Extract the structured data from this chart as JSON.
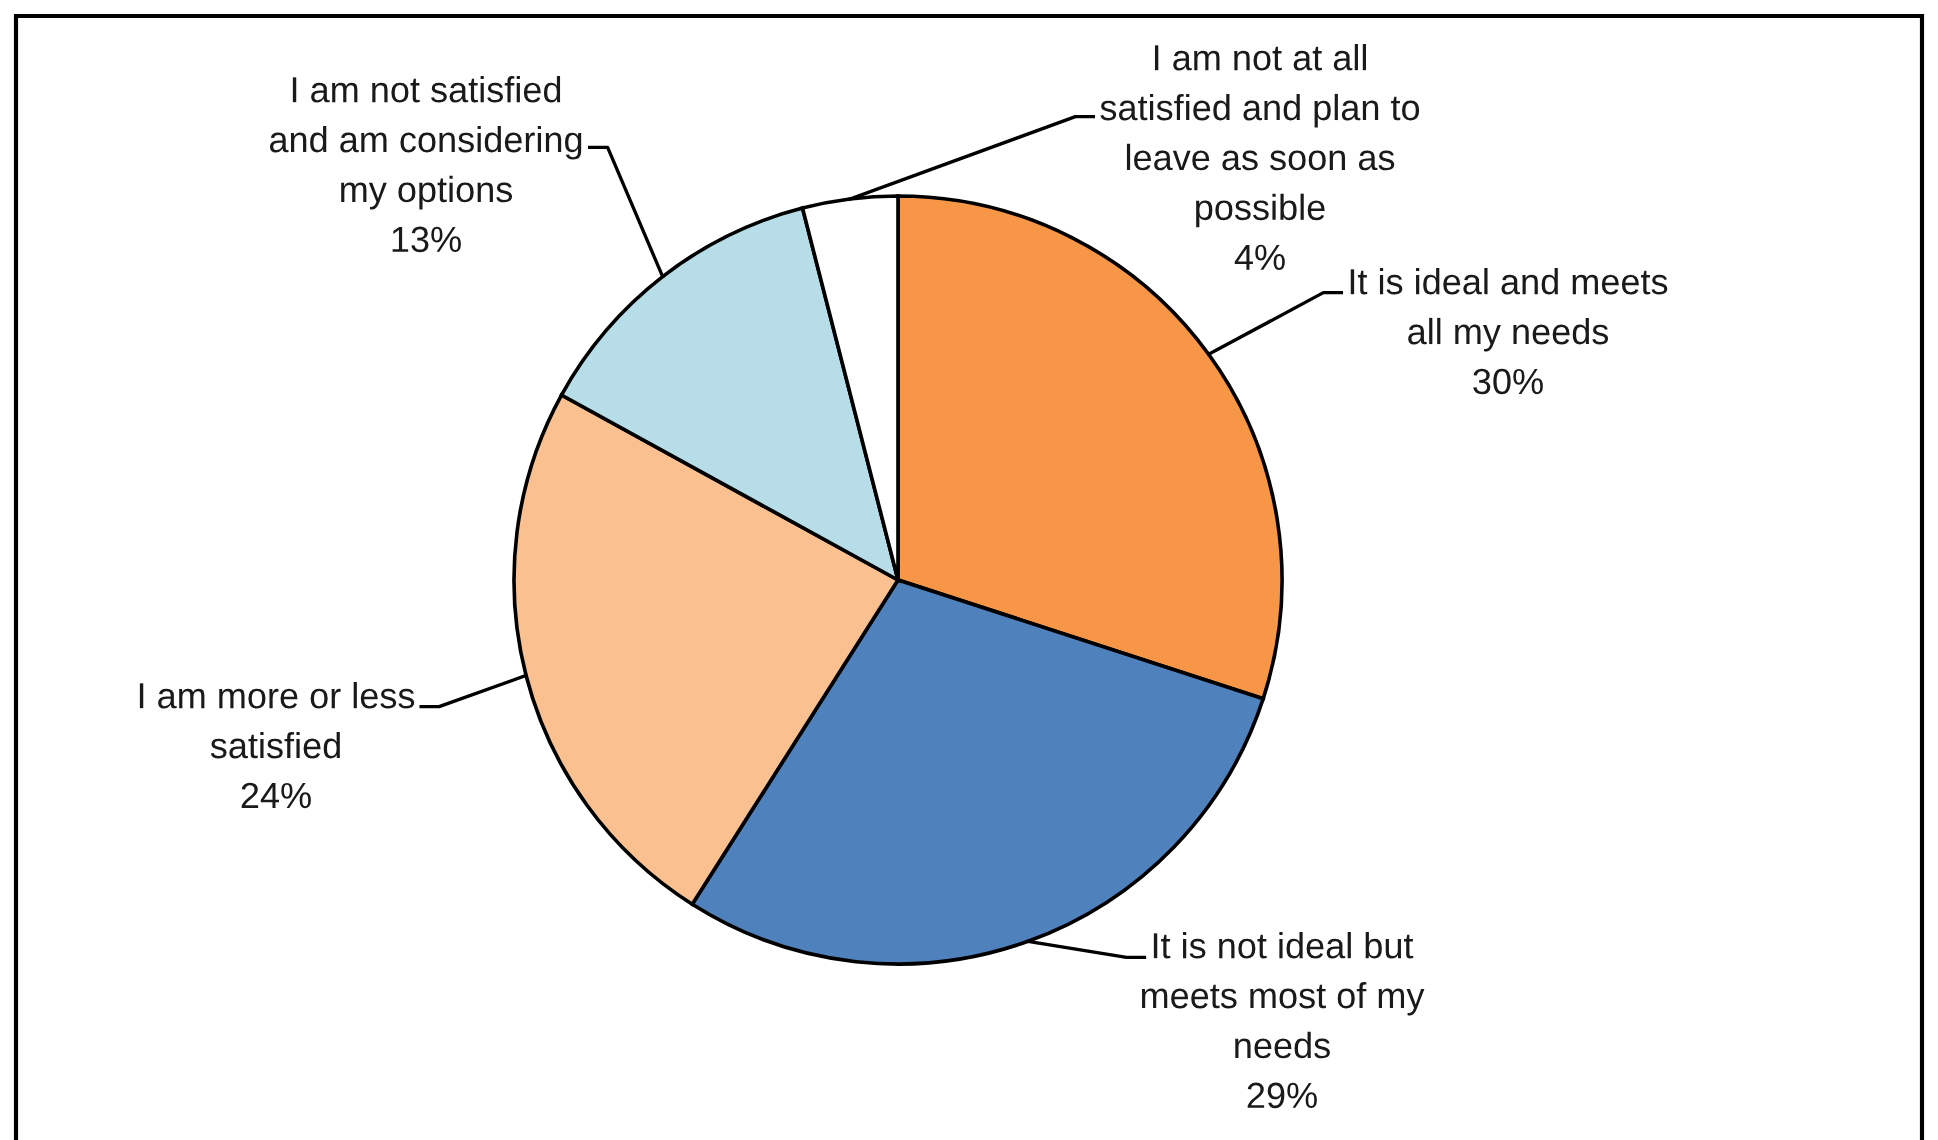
{
  "chart_data": {
    "type": "pie",
    "categories": [
      "It is ideal and meets\nall my needs",
      "It is not ideal but\nmeets most of my\nneeds",
      "I am more or less\nsatisfied",
      "I am not satisfied\nand am considering\nmy options",
      "I am not at all\nsatisfied and plan to\nleave as soon as\npossible"
    ],
    "values": [
      30,
      29,
      24,
      13,
      4
    ],
    "value_labels": [
      "30%",
      "29%",
      "24%",
      "13%",
      "4%"
    ],
    "colors": [
      "#f79646",
      "#4f81bd",
      "#fac090",
      "#b7dde8",
      "#ffffff"
    ]
  }
}
